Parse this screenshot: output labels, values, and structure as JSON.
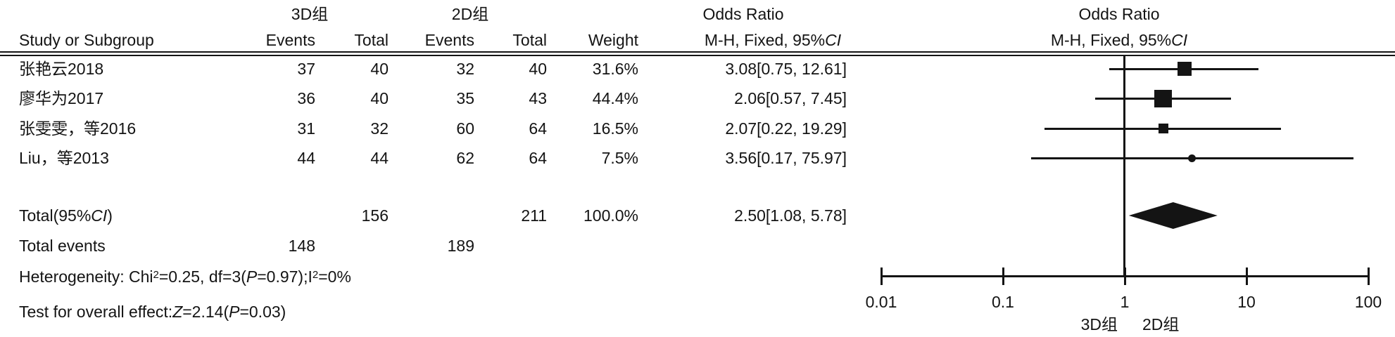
{
  "figure": {
    "header": {
      "study_col": "Study or Subgroup",
      "group_3d": "3D组",
      "group_2d": "2D组",
      "events": "Events",
      "total": "Total",
      "weight": "Weight",
      "or_title": "Odds Ratio",
      "mh_pre": "M-H, Fixed, 95%",
      "mh_ci": "CI"
    },
    "summary": {
      "total_label_pre": "Total(95%",
      "total_label_ci": "CI",
      "total_label_post": ")",
      "total_3d_n": "156",
      "total_2d_n": "211",
      "total_weight": "100.0%",
      "total_or_text": "2.50[1.08, 5.78]",
      "total_events_label": "Total events",
      "total_events_3d": "148",
      "total_events_2d": "189",
      "heterogeneity": {
        "t1": "Heterogeneity: Chi",
        "sup1": "2",
        "t2": "=0.25, df=3(",
        "it1": "P",
        "t3": "=0.97);I",
        "sup2": "2",
        "t4": "=0%"
      },
      "overall": {
        "t1": "Test for overall effect:",
        "it1": "Z",
        "t2": "=2.14(",
        "it2": "P",
        "t3": "=0.03)"
      }
    }
  },
  "chart_data": {
    "type": "forest",
    "title": "Odds Ratio",
    "effect_measure": "M-H, Fixed, 95% CI",
    "x_scale": "log",
    "x_ticks": [
      0.01,
      0.1,
      1,
      10,
      100
    ],
    "x_tick_labels": [
      "0.01",
      "0.1",
      "1",
      "10",
      "100"
    ],
    "favours_left": "3D组",
    "favours_right": "2D组",
    "studies": [
      {
        "study": "张艳云2018",
        "events_3d": "37",
        "total_3d": "40",
        "events_2d": "32",
        "total_2d": "40",
        "weight": "31.6%",
        "weight_pct": 31.6,
        "or": 3.08,
        "ci_low": 0.75,
        "ci_high": 12.61,
        "or_text": "3.08[0.75, 12.61]"
      },
      {
        "study": "廖华为2017",
        "events_3d": "36",
        "total_3d": "40",
        "events_2d": "35",
        "total_2d": "43",
        "weight": "44.4%",
        "weight_pct": 44.4,
        "or": 2.06,
        "ci_low": 0.57,
        "ci_high": 7.45,
        "or_text": "2.06[0.57, 7.45]"
      },
      {
        "study": "张雯雯，等2016",
        "events_3d": "31",
        "total_3d": "32",
        "events_2d": "60",
        "total_2d": "64",
        "weight": "16.5%",
        "weight_pct": 16.5,
        "or": 2.07,
        "ci_low": 0.22,
        "ci_high": 19.29,
        "or_text": "2.07[0.22, 19.29]"
      },
      {
        "study": "Liu，等2013",
        "events_3d": "44",
        "total_3d": "44",
        "events_2d": "62",
        "total_2d": "64",
        "weight": "7.5%",
        "weight_pct": 7.5,
        "or": 3.56,
        "ci_low": 0.17,
        "ci_high": 75.97,
        "or_text": "3.56[0.17, 75.97]"
      }
    ],
    "total": {
      "or": 2.5,
      "ci_low": 1.08,
      "ci_high": 5.78,
      "total_3d": 156,
      "total_2d": 211,
      "weight_pct": 100.0
    }
  },
  "colors": {
    "ink": "#141414",
    "background": "#ffffff"
  }
}
